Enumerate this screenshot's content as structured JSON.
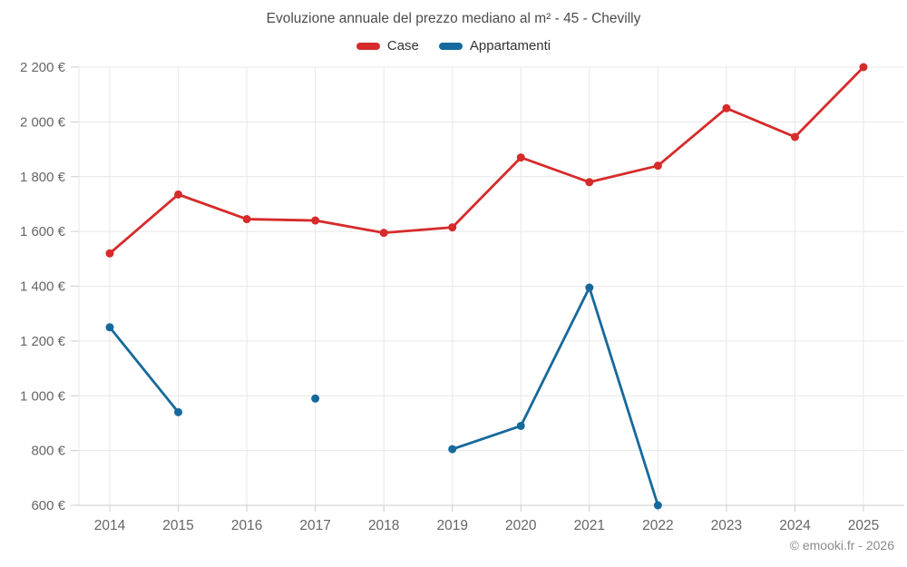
{
  "header": {
    "title": "Evoluzione annuale del prezzo mediano al m² - 45 - Chevilly"
  },
  "legend": [
    {
      "label": "Case",
      "color": "#d62b2b"
    },
    {
      "label": "Appartamenti",
      "color": "#16699c"
    }
  ],
  "footer": {
    "copyright": "© emooki.fr - 2026"
  },
  "chart_data": {
    "type": "line",
    "title": "Evoluzione annuale del prezzo mediano al m² - 45 - Chevilly",
    "xlabel": "",
    "ylabel": "",
    "categories": [
      "2014",
      "2015",
      "2016",
      "2017",
      "2018",
      "2019",
      "2020",
      "2021",
      "2022",
      "2023",
      "2024",
      "2025"
    ],
    "series": [
      {
        "name": "Case",
        "color": "#d62b2b",
        "values": [
          1520,
          1735,
          1645,
          1640,
          1595,
          1615,
          1870,
          1780,
          1840,
          2050,
          1945,
          2200
        ]
      },
      {
        "name": "Appartamenti",
        "color": "#16699c",
        "values": [
          1250,
          940,
          null,
          990,
          null,
          805,
          890,
          1395,
          600,
          null,
          null,
          null
        ]
      }
    ],
    "ylim": [
      600,
      2200
    ],
    "yticks": [
      600,
      800,
      1000,
      1200,
      1400,
      1600,
      1800,
      2000,
      2200
    ],
    "ytick_labels": [
      "600 €",
      "800 €",
      "1 000 €",
      "1 200 €",
      "1 400 €",
      "1 600 €",
      "1 800 €",
      "2 000 €",
      "2 200 €"
    ],
    "grid": true,
    "legend_position": "top",
    "currency_suffix": " €"
  }
}
